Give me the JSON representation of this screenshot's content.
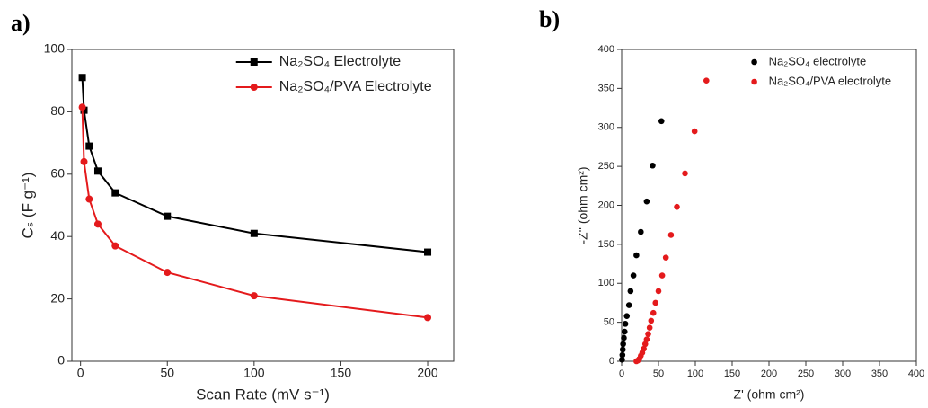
{
  "chart_data": [
    {
      "type": "line",
      "panel_label": "a)",
      "xlabel": "Scan Rate (mV s⁻¹)",
      "ylabel": "Cₛ (F g⁻¹)",
      "x": [
        1,
        2,
        5,
        10,
        20,
        50,
        100,
        200
      ],
      "series": [
        {
          "name": "Na₂SO₄ Electrolyte",
          "color": "#000000",
          "marker": "square",
          "values": [
            91,
            80.5,
            69,
            61,
            54,
            46.5,
            41,
            35
          ]
        },
        {
          "name": "Na₂SO₄/PVA Electrolyte",
          "color": "#e41a1c",
          "marker": "circle",
          "values": [
            81.5,
            64,
            52,
            44,
            37,
            28.5,
            21,
            14
          ]
        }
      ],
      "xlim": [
        -5,
        215
      ],
      "ylim": [
        0,
        100
      ],
      "xticks": [
        0,
        50,
        100,
        150,
        200
      ],
      "yticks": [
        0,
        20,
        40,
        60,
        80,
        100
      ],
      "legend": "upper right"
    },
    {
      "type": "scatter",
      "panel_label": "b)",
      "xlabel": "Z' (ohm cm²)",
      "ylabel": "-Z'' (ohm cm²)",
      "series": [
        {
          "name": "Na₂SO₄ electrolyte",
          "color": "#000000",
          "x": [
            54,
            42,
            34,
            26,
            20,
            16,
            12,
            10,
            7,
            5,
            4,
            3,
            2,
            1.5,
            1,
            0.5
          ],
          "values": [
            308,
            251,
            205,
            166,
            136,
            110,
            90,
            72,
            58,
            48,
            38,
            30,
            22,
            15,
            8,
            2
          ]
        },
        {
          "name": "Na₂SO₄/PVA electrolyte",
          "color": "#e41a1c",
          "x": [
            115,
            99,
            86,
            75,
            67,
            60,
            55,
            50,
            46,
            43,
            40,
            38,
            36,
            34,
            32,
            30,
            28,
            26,
            24,
            22,
            20
          ],
          "values": [
            360,
            295,
            241,
            198,
            162,
            133,
            110,
            90,
            75,
            62,
            52,
            43,
            35,
            28,
            22,
            16,
            11,
            7,
            3,
            1,
            0
          ]
        }
      ],
      "xlim": [
        0,
        400
      ],
      "ylim": [
        0,
        400
      ],
      "xticks": [
        0,
        50,
        100,
        150,
        200,
        250,
        300,
        350,
        400
      ],
      "yticks": [
        0,
        50,
        100,
        150,
        200,
        250,
        300,
        350,
        400
      ],
      "legend": "upper center"
    }
  ]
}
